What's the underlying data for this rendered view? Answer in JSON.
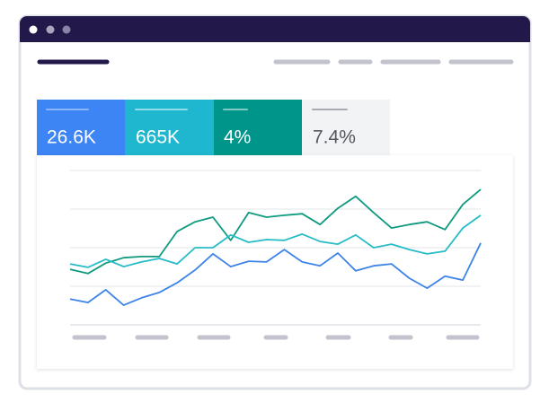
{
  "kpis": [
    "26.6K",
    "665K",
    "4%",
    "7.4%"
  ],
  "chart_data": {
    "type": "line",
    "ylim": [
      0,
      4
    ],
    "series": [
      {
        "color": "#0f9a80",
        "values": [
          1.44,
          1.33,
          1.6,
          1.74,
          1.77,
          1.77,
          2.42,
          2.67,
          2.79,
          2.19,
          2.91,
          2.79,
          2.84,
          2.88,
          2.6,
          3.02,
          3.33,
          2.91,
          2.51,
          2.6,
          2.67,
          2.47,
          3.12,
          3.51
        ]
      },
      {
        "color": "#26bcc8",
        "values": [
          1.58,
          1.49,
          1.7,
          1.51,
          1.63,
          1.72,
          1.58,
          2.0,
          2.0,
          2.33,
          2.14,
          2.21,
          2.19,
          2.35,
          2.16,
          2.09,
          2.33,
          2.0,
          2.09,
          1.95,
          1.84,
          1.91,
          2.51,
          2.84
        ]
      },
      {
        "color": "#3d84e8",
        "values": [
          0.67,
          0.58,
          0.91,
          0.51,
          0.7,
          0.84,
          1.09,
          1.42,
          1.84,
          1.51,
          1.65,
          1.63,
          1.95,
          1.63,
          1.53,
          1.86,
          1.4,
          1.53,
          1.58,
          1.21,
          0.95,
          1.26,
          1.16,
          2.12
        ]
      }
    ]
  }
}
